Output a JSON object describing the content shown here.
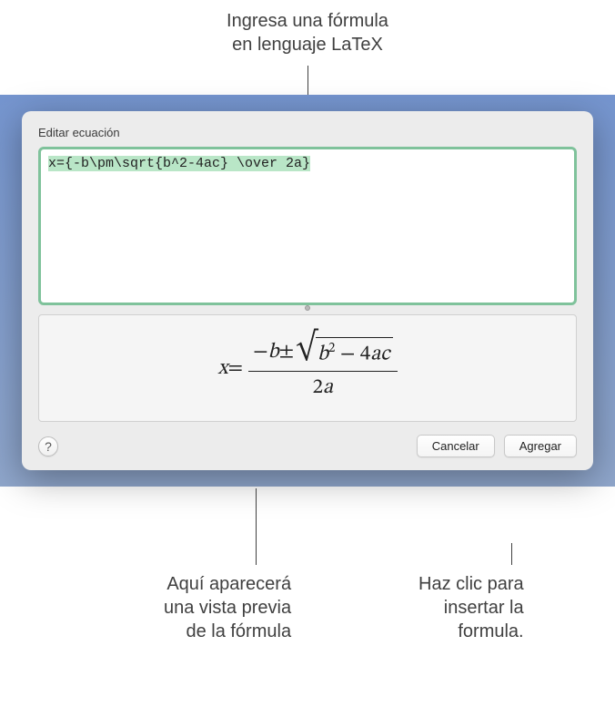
{
  "callouts": {
    "top": "Ingresa una fórmula\nen lenguaje LaTeX",
    "bottom_left": "Aquí aparecerá\nuna vista previa\nde la fórmula",
    "bottom_right": "Haz clic para\ninsertar la\nformula."
  },
  "dialog": {
    "title": "Editar ecuación",
    "input_value": "x={-b\\pm\\sqrt{b^2-4ac} \\over 2a}",
    "help_label": "?",
    "cancel_label": "Cancelar",
    "add_label": "Agregar"
  },
  "preview": {
    "lhs": "x",
    "eq": " = ",
    "numerator_prefix": "−",
    "b": "b",
    "pm": " ± ",
    "sqrt_b": "b",
    "sqrt_exp": "2",
    "sqrt_minus": " − 4",
    "sqrt_a": "a",
    "sqrt_c": "c",
    "denom_2": "2",
    "denom_a": "a"
  },
  "colors": {
    "callout_text": "#404040",
    "input_border": "#7fc29b",
    "input_highlight": "#b9e6c7",
    "dialog_bg": "#ececec",
    "desktop_bg_top": "#7595cf"
  }
}
